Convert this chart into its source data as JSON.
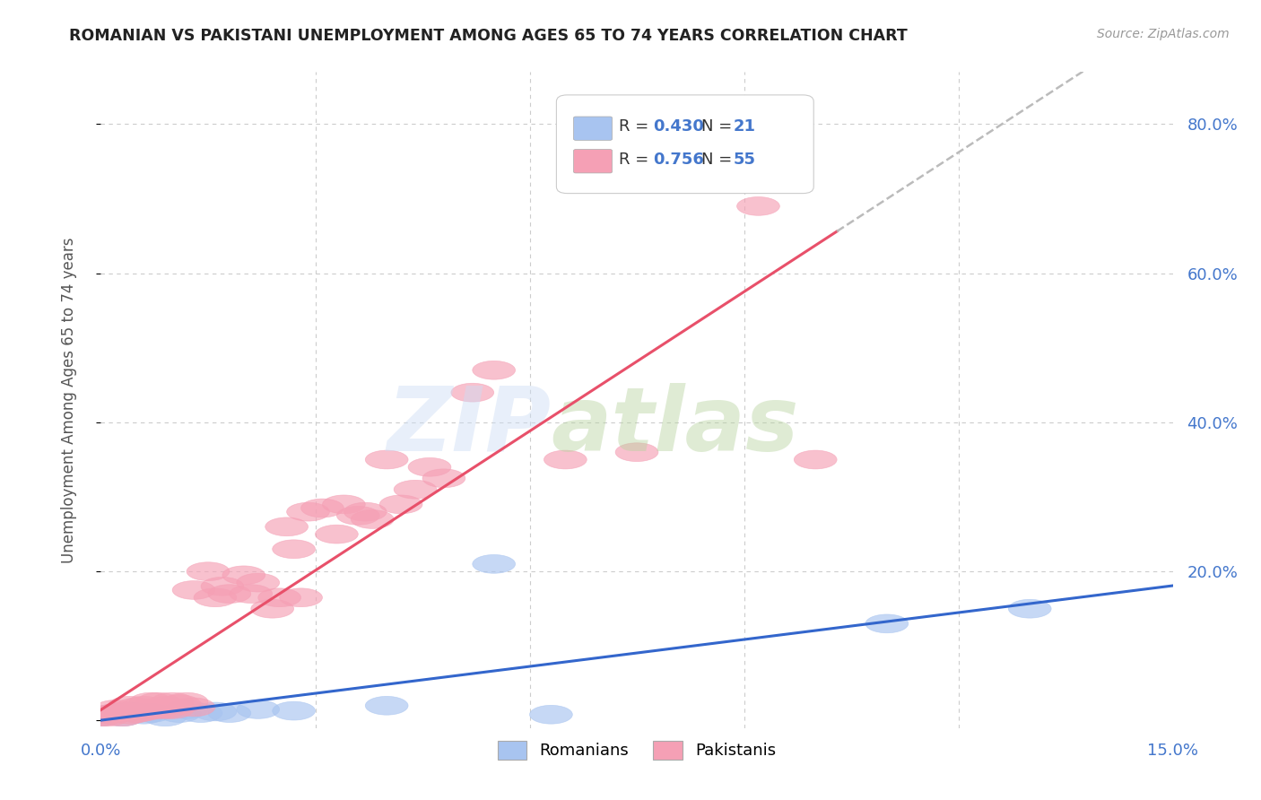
{
  "title": "ROMANIAN VS PAKISTANI UNEMPLOYMENT AMONG AGES 65 TO 74 YEARS CORRELATION CHART",
  "source": "Source: ZipAtlas.com",
  "ylabel": "Unemployment Among Ages 65 to 74 years",
  "xlim": [
    0.0,
    0.15
  ],
  "ylim": [
    -0.01,
    0.87
  ],
  "romanian_color": "#a8c4f0",
  "pakistani_color": "#f5a0b5",
  "romanian_line_color": "#3366cc",
  "pakistani_line_color": "#e8506a",
  "trendline_extend_color": "#bbbbbb",
  "R_romanian": 0.43,
  "N_romanian": 21,
  "R_pakistani": 0.756,
  "N_pakistani": 55,
  "romanians_x": [
    0.0,
    0.001,
    0.002,
    0.003,
    0.004,
    0.005,
    0.006,
    0.007,
    0.009,
    0.011,
    0.012,
    0.014,
    0.016,
    0.018,
    0.022,
    0.027,
    0.04,
    0.055,
    0.063,
    0.11,
    0.13
  ],
  "romanians_y": [
    0.005,
    0.008,
    0.01,
    0.005,
    0.012,
    0.01,
    0.008,
    0.01,
    0.005,
    0.01,
    0.015,
    0.01,
    0.012,
    0.01,
    0.015,
    0.013,
    0.02,
    0.21,
    0.008,
    0.13,
    0.15
  ],
  "pakistanis_x": [
    0.0,
    0.001,
    0.001,
    0.002,
    0.002,
    0.003,
    0.003,
    0.004,
    0.004,
    0.005,
    0.005,
    0.006,
    0.006,
    0.007,
    0.007,
    0.008,
    0.008,
    0.009,
    0.009,
    0.01,
    0.01,
    0.011,
    0.012,
    0.013,
    0.013,
    0.015,
    0.016,
    0.017,
    0.018,
    0.02,
    0.021,
    0.022,
    0.024,
    0.025,
    0.026,
    0.027,
    0.028,
    0.029,
    0.031,
    0.033,
    0.034,
    0.036,
    0.037,
    0.038,
    0.04,
    0.042,
    0.044,
    0.046,
    0.048,
    0.052,
    0.055,
    0.065,
    0.075,
    0.092,
    0.1
  ],
  "pakistanis_y": [
    0.005,
    0.005,
    0.008,
    0.01,
    0.015,
    0.005,
    0.012,
    0.008,
    0.02,
    0.01,
    0.018,
    0.012,
    0.02,
    0.015,
    0.025,
    0.015,
    0.025,
    0.015,
    0.02,
    0.015,
    0.025,
    0.022,
    0.025,
    0.018,
    0.175,
    0.2,
    0.165,
    0.18,
    0.17,
    0.195,
    0.17,
    0.185,
    0.15,
    0.165,
    0.26,
    0.23,
    0.165,
    0.28,
    0.285,
    0.25,
    0.29,
    0.275,
    0.28,
    0.27,
    0.35,
    0.29,
    0.31,
    0.34,
    0.325,
    0.44,
    0.47,
    0.35,
    0.36,
    0.69,
    0.35
  ],
  "background_color": "#ffffff",
  "grid_color": "#cccccc",
  "tick_color": "#4477cc",
  "label_color": "#555555"
}
